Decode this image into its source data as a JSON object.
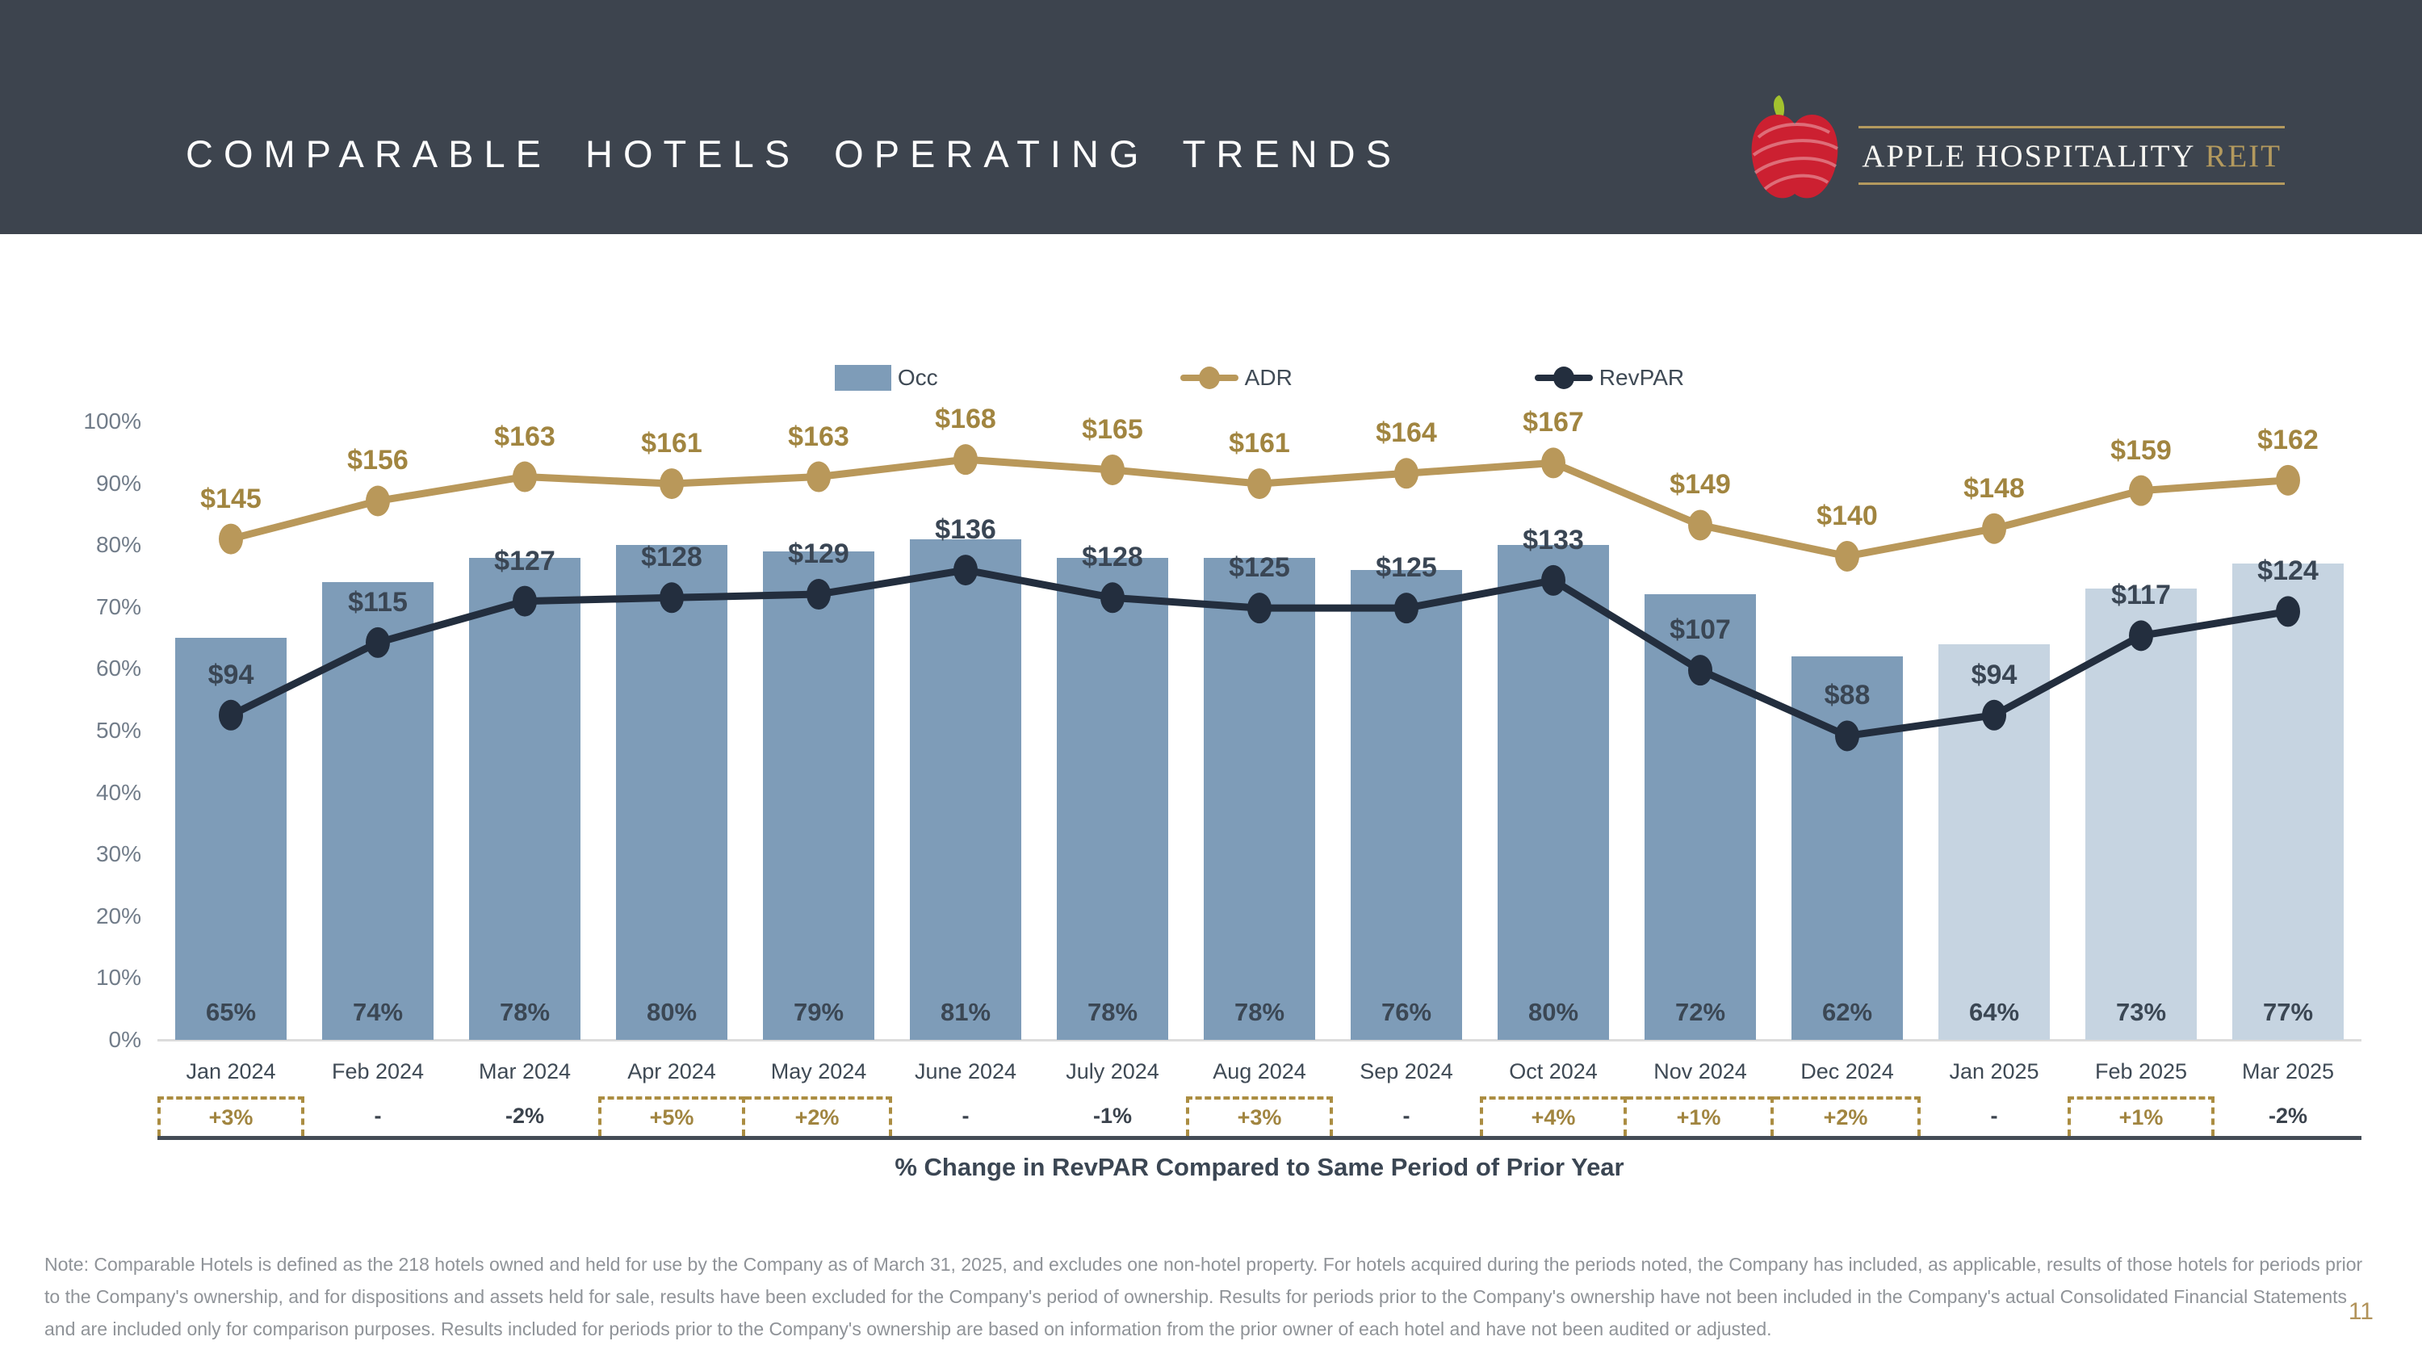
{
  "slide": {
    "title": "COMPARABLE HOTELS OPERATING TRENDS",
    "page_number": "11",
    "note": "Note: Comparable Hotels is defined as the 218 hotels owned and held for use by the Company as of March 31, 2025, and excludes one non-hotel property. For hotels acquired during the periods noted, the Company has included, as applicable, results of those hotels for periods prior to the Company's ownership, and for dispositions and assets held for sale, results have been excluded for the Company's period of ownership. Results for periods prior to the Company's ownership have not been included in the Company's actual Consolidated Financial Statements and are included only for comparison purposes. Results included for periods prior to the Company's ownership are based on information from the prior owner of each hotel and have not been audited or adjusted."
  },
  "logo": {
    "brand": "APPLE HOSPITALITY",
    "suffix": "REIT"
  },
  "legend": {
    "occ": "Occ",
    "adr": "ADR",
    "revpar": "RevPAR"
  },
  "colors": {
    "header_bg": "#3d444e",
    "bar_2024": "#7e9cb8",
    "bar_2025": "#c6d4e1",
    "adr_line": "#b9985a",
    "adr_text": "#a18540",
    "revpar_line": "#232e3e",
    "revpar_text": "#3a4654",
    "change_box_border": "#ab8d42",
    "gold_accent": "#b49a5e",
    "apple_red": "#cc2031",
    "leaf_green": "#a3c22e"
  },
  "chart_data": {
    "type": "bar",
    "subtype": "combo-bar-line",
    "title": "",
    "categories": [
      "Jan 2024",
      "Feb 2024",
      "Mar 2024",
      "Apr 2024",
      "May 2024",
      "June 2024",
      "July 2024",
      "Aug 2024",
      "Sep 2024",
      "Oct 2024",
      "Nov 2024",
      "Dec 2024",
      "Jan 2025",
      "Feb 2025",
      "Mar 2025"
    ],
    "series": [
      {
        "name": "Occ",
        "type": "bar",
        "unit": "%",
        "values": [
          65,
          74,
          78,
          80,
          79,
          81,
          78,
          78,
          76,
          80,
          72,
          62,
          64,
          73,
          77
        ],
        "labels": [
          "65%",
          "74%",
          "78%",
          "80%",
          "79%",
          "81%",
          "78%",
          "78%",
          "76%",
          "80%",
          "72%",
          "62%",
          "64%",
          "73%",
          "77%"
        ]
      },
      {
        "name": "ADR",
        "type": "line",
        "unit": "$",
        "values": [
          145,
          156,
          163,
          161,
          163,
          168,
          165,
          161,
          164,
          167,
          149,
          140,
          148,
          159,
          162
        ],
        "labels": [
          "$145",
          "$156",
          "$163",
          "$161",
          "$163",
          "$168",
          "$165",
          "$161",
          "$164",
          "$167",
          "$149",
          "$140",
          "$148",
          "$159",
          "$162"
        ]
      },
      {
        "name": "RevPAR",
        "type": "line",
        "unit": "$",
        "values": [
          94,
          115,
          127,
          128,
          129,
          136,
          128,
          125,
          125,
          133,
          107,
          88,
          94,
          117,
          124
        ],
        "labels": [
          "$94",
          "$115",
          "$127",
          "$128",
          "$129",
          "$136",
          "$128",
          "$125",
          "$125",
          "$133",
          "$107",
          "$88",
          "$94",
          "$117",
          "$124"
        ]
      }
    ],
    "y_axis": {
      "ticks": [
        "0%",
        "10%",
        "20%",
        "30%",
        "40%",
        "50%",
        "60%",
        "70%",
        "80%",
        "90%",
        "100%"
      ],
      "min": 0,
      "max": 100,
      "gridlines": false
    },
    "secondary_dollar_scale_pct_per_dollar": 0.5586,
    "bar_highlight_from_index": 12,
    "legend_position": "top-center",
    "revpar_change_row": {
      "caption": "% Change in RevPAR Compared to Same Period of Prior Year",
      "values": [
        "+3%",
        "-",
        "-2%",
        "+5%",
        "+2%",
        "-",
        "-1%",
        "+3%",
        "-",
        "+4%",
        "+1%",
        "+2%",
        "-",
        "+1%",
        "-2%"
      ],
      "boxed": [
        true,
        false,
        false,
        true,
        true,
        false,
        false,
        true,
        false,
        true,
        true,
        true,
        false,
        true,
        false
      ]
    }
  }
}
